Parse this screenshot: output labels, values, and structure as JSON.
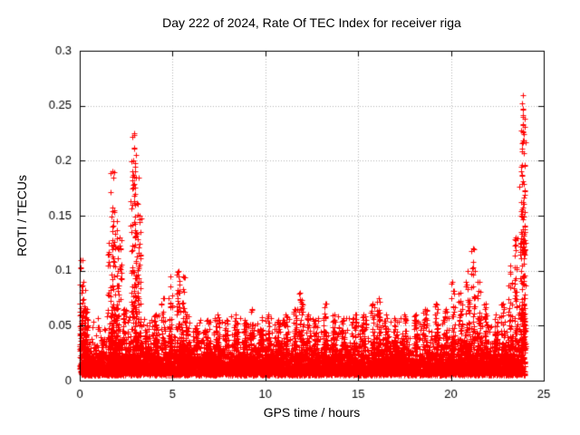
{
  "chart_data": {
    "type": "scatter",
    "title": "Day 222 of 2024, Rate Of TEC Index for receiver riga",
    "xlabel": "GPS time / hours",
    "ylabel": "ROTI / TECUs",
    "xlim": [
      0,
      25
    ],
    "ylim": [
      0,
      0.3
    ],
    "xticks": [
      {
        "v": 0,
        "label": "0"
      },
      {
        "v": 5,
        "label": "5"
      },
      {
        "v": 10,
        "label": "10"
      },
      {
        "v": 15,
        "label": "15"
      },
      {
        "v": 20,
        "label": "20"
      },
      {
        "v": 25,
        "label": "25"
      }
    ],
    "yticks": [
      {
        "v": 0,
        "label": "0"
      },
      {
        "v": 0.05,
        "label": "0.05"
      },
      {
        "v": 0.1,
        "label": "0.1"
      },
      {
        "v": 0.15,
        "label": "0.15"
      },
      {
        "v": 0.2,
        "label": "0.2"
      },
      {
        "v": 0.25,
        "label": "0.25"
      },
      {
        "v": 0.3,
        "label": "0.3"
      }
    ],
    "grid": true,
    "legend": "none",
    "marker": "plus",
    "marker_color": "#ff0000",
    "axis_color": "#000000",
    "grid_color": "#b4b4b4",
    "data_hours": [
      0,
      24
    ],
    "seed": 222,
    "baseline": {
      "count": 6500,
      "min": 0.005,
      "exp_mean": 0.011,
      "cap": 0.06
    },
    "floor": {
      "count": 1500,
      "min": 0.005,
      "range": 0.02
    },
    "spike_shape": {
      "t_spread": 0.22,
      "base": 0.028,
      "pow": 1.7,
      "count_base": 20,
      "count_per_peak": 140
    },
    "spikes": [
      {
        "t": 0.05,
        "peak": 0.11
      },
      {
        "t": 0.2,
        "peak": 0.09
      },
      {
        "t": 0.35,
        "peak": 0.065
      },
      {
        "t": 1.6,
        "peak": 0.125
      },
      {
        "t": 1.75,
        "peak": 0.19
      },
      {
        "t": 1.85,
        "peak": 0.155
      },
      {
        "t": 2.0,
        "peak": 0.145
      },
      {
        "t": 2.15,
        "peak": 0.13
      },
      {
        "t": 2.4,
        "peak": 0.065
      },
      {
        "t": 2.85,
        "peak": 0.2
      },
      {
        "t": 2.95,
        "peak": 0.225
      },
      {
        "t": 3.05,
        "peak": 0.185
      },
      {
        "t": 3.2,
        "peak": 0.15
      },
      {
        "t": 3.6,
        "peak": 0.05
      },
      {
        "t": 4.1,
        "peak": 0.06
      },
      {
        "t": 4.5,
        "peak": 0.075
      },
      {
        "t": 4.9,
        "peak": 0.095
      },
      {
        "t": 5.3,
        "peak": 0.1
      },
      {
        "t": 5.55,
        "peak": 0.095
      },
      {
        "t": 5.8,
        "peak": 0.06
      },
      {
        "t": 6.3,
        "peak": 0.05
      },
      {
        "t": 6.9,
        "peak": 0.055
      },
      {
        "t": 7.4,
        "peak": 0.06
      },
      {
        "t": 7.9,
        "peak": 0.055
      },
      {
        "t": 8.4,
        "peak": 0.06
      },
      {
        "t": 8.9,
        "peak": 0.055
      },
      {
        "t": 9.3,
        "peak": 0.065
      },
      {
        "t": 9.8,
        "peak": 0.055
      },
      {
        "t": 10.2,
        "peak": 0.06
      },
      {
        "t": 10.7,
        "peak": 0.055
      },
      {
        "t": 11.1,
        "peak": 0.06
      },
      {
        "t": 11.6,
        "peak": 0.065
      },
      {
        "t": 11.9,
        "peak": 0.08
      },
      {
        "t": 12.3,
        "peak": 0.06
      },
      {
        "t": 12.7,
        "peak": 0.055
      },
      {
        "t": 13.2,
        "peak": 0.07
      },
      {
        "t": 13.7,
        "peak": 0.06
      },
      {
        "t": 14.2,
        "peak": 0.055
      },
      {
        "t": 14.8,
        "peak": 0.06
      },
      {
        "t": 15.3,
        "peak": 0.06
      },
      {
        "t": 15.8,
        "peak": 0.07
      },
      {
        "t": 16.1,
        "peak": 0.075
      },
      {
        "t": 16.5,
        "peak": 0.06
      },
      {
        "t": 17.0,
        "peak": 0.055
      },
      {
        "t": 17.5,
        "peak": 0.06
      },
      {
        "t": 18.1,
        "peak": 0.06
      },
      {
        "t": 18.6,
        "peak": 0.065
      },
      {
        "t": 19.2,
        "peak": 0.07
      },
      {
        "t": 19.7,
        "peak": 0.065
      },
      {
        "t": 20.1,
        "peak": 0.09
      },
      {
        "t": 20.5,
        "peak": 0.08
      },
      {
        "t": 20.9,
        "peak": 0.1
      },
      {
        "t": 21.2,
        "peak": 0.12
      },
      {
        "t": 21.5,
        "peak": 0.09
      },
      {
        "t": 21.9,
        "peak": 0.07
      },
      {
        "t": 22.4,
        "peak": 0.06
      },
      {
        "t": 22.8,
        "peak": 0.07
      },
      {
        "t": 23.2,
        "peak": 0.105
      },
      {
        "t": 23.5,
        "peak": 0.13
      },
      {
        "t": 23.8,
        "peak": 0.19
      },
      {
        "t": 23.88,
        "peak": 0.24
      },
      {
        "t": 23.9,
        "peak": 0.26
      },
      {
        "t": 23.95,
        "peak": 0.135
      }
    ]
  }
}
